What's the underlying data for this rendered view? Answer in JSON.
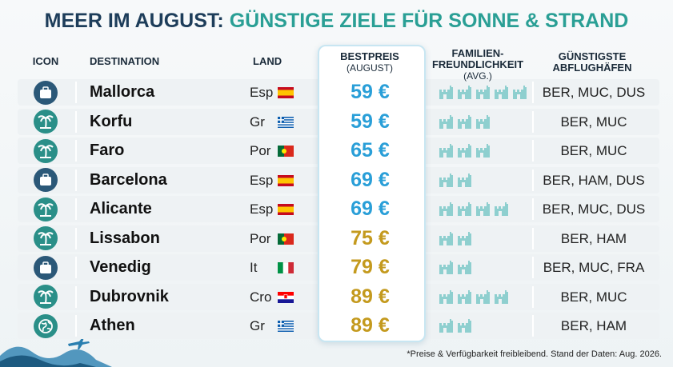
{
  "title": {
    "part1": "MEER IM AUGUST:",
    "part2": "GÜNSTIGE ZIELE FÜR SONNE & STRAND"
  },
  "columns": [
    [
      "ICON"
    ],
    [
      "DESTINATION"
    ],
    [
      "LAND"
    ],
    [
      "BESTPREIS",
      "(AUGUST)"
    ],
    [
      "FAMILIEN-",
      "FREUNDLICHKEIT",
      "(AVG.)"
    ],
    [
      "GÜNSTIGSTE",
      "ABFLUGHÄFEN"
    ]
  ],
  "rows": [
    {
      "icon": "suitcase",
      "destination": "Mallorca",
      "country": "Esp",
      "flag": "es",
      "price": "59 €",
      "price_color": "#2a9fd8",
      "family": 5,
      "airports": "BER, MUC, DUS"
    },
    {
      "icon": "palm",
      "destination": "Korfu",
      "country": "Gr",
      "flag": "gr",
      "price": "59 €",
      "price_color": "#2a9fd8",
      "family": 3,
      "airports": "BER, MUC"
    },
    {
      "icon": "palm",
      "destination": "Faro",
      "country": "Por",
      "flag": "pt",
      "price": "65 €",
      "price_color": "#2a9fd8",
      "family": 3,
      "airports": "BER, MUC"
    },
    {
      "icon": "suitcase",
      "destination": "Barcelona",
      "country": "Esp",
      "flag": "es",
      "price": "69 €",
      "price_color": "#2a9fd8",
      "family": 2,
      "airports": "BER, HAM, DUS"
    },
    {
      "icon": "palm",
      "destination": "Alicante",
      "country": "Esp",
      "flag": "es",
      "price": "69 €",
      "price_color": "#2a9fd8",
      "family": 4,
      "airports": "BER, MUC, DUS"
    },
    {
      "icon": "palm",
      "destination": "Lissabon",
      "country": "Por",
      "flag": "pt",
      "price": "75 €",
      "price_color": "#c49a1e",
      "family": 2,
      "airports": "BER, HAM"
    },
    {
      "icon": "suitcase",
      "destination": "Venedig",
      "country": "It",
      "flag": "it",
      "price": "79 €",
      "price_color": "#c49a1e",
      "family": 2,
      "airports": "BER, MUC, FRA"
    },
    {
      "icon": "palm",
      "destination": "Dubrovnik",
      "country": "Cro",
      "flag": "hr",
      "price": "89 €",
      "price_color": "#c49a1e",
      "family": 4,
      "airports": "BER, MUC"
    },
    {
      "icon": "globe",
      "destination": "Athen",
      "country": "Gr",
      "flag": "gr",
      "price": "89 €",
      "price_color": "#c49a1e",
      "family": 2,
      "airports": "BER, HAM"
    }
  ],
  "footnote": "*Preise & Verfügbarkeit freibleibend. Stand der Daten: Aug. 2026."
}
